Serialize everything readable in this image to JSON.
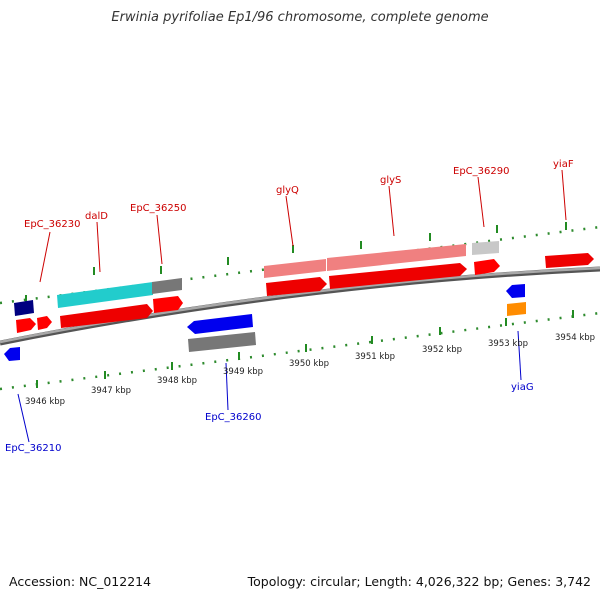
{
  "title": "Erwinia pyrifoliae Ep1/96 chromosome, complete genome",
  "footer": {
    "accession": "Accession: NC_012214",
    "summary": "Topology: circular; Length: 4,026,322 bp; Genes: 3,742"
  },
  "scale_labels": [
    "3946 kbp",
    "3947 kbp",
    "3948 kbp",
    "3949 kbp",
    "3950 kbp",
    "3951 kbp",
    "3952 kbp",
    "3953 kbp",
    "3954 kbp"
  ],
  "genes": {
    "top": [
      "EpC_36230",
      "dalD",
      "EpC_36250",
      "glyQ",
      "glyS",
      "EpC_36290",
      "yiaF"
    ],
    "bottom": [
      "EpC_36210",
      "EpC_36260",
      "yiaG"
    ]
  },
  "colors": {
    "backbone": "#8a8a8a",
    "forward_gene": "#ff0000",
    "reverse_gene": "#0000ee",
    "cds_light": "#f08080",
    "cds_cyan": "#22cccc",
    "cds_gray": "#777777",
    "cds_light_gray": "#c8c8c8",
    "cds_navy": "#000080",
    "cds_orange": "#ff8c00",
    "tick": "#228b22"
  }
}
